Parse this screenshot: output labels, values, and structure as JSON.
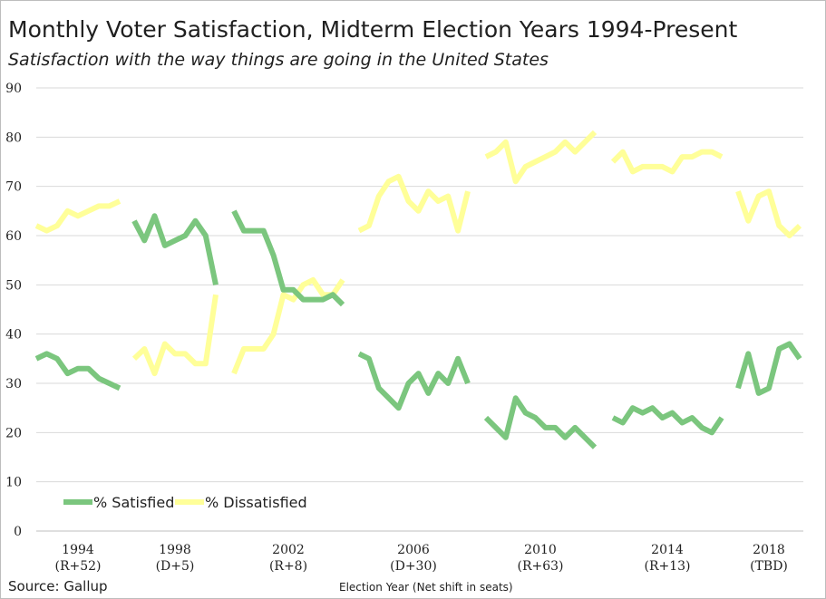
{
  "title": "Monthly Voter Satisfaction, Midterm Election Years 1994-Present",
  "subtitle": "Satisfaction with the way things are going in the United States",
  "source": "Source: Gallup",
  "colors": {
    "satisfied": "#7bc67e",
    "dissatisfied": "#ffff99",
    "grid": "#d9d9d9",
    "axis": "#bfbfbf"
  },
  "chart_data": {
    "type": "line",
    "title": "Monthly Voter Satisfaction, Midterm Election Years 1994-Present",
    "subtitle": "Satisfaction with the way things are going in the United States",
    "xlabel": "Election Year (Net shift in seats)",
    "ylabel": "",
    "ylim": [
      0,
      90
    ],
    "yticks": [
      0,
      10,
      20,
      30,
      40,
      50,
      60,
      70,
      80,
      90
    ],
    "grid": "horizontal",
    "legend": "bottom-left",
    "groups": [
      {
        "year": "1994",
        "shift": "(R+52)",
        "satisfied": [
          35,
          36,
          35,
          32,
          33,
          33,
          31,
          30,
          29
        ],
        "dissatisfied": [
          62,
          61,
          62,
          65,
          64,
          65,
          66,
          66,
          67
        ]
      },
      {
        "year": "1998",
        "shift": "(D+5)",
        "satisfied": [
          63,
          59,
          64,
          58,
          59,
          60,
          63,
          60,
          50
        ],
        "dissatisfied": [
          35,
          37,
          32,
          38,
          36,
          36,
          34,
          34,
          48
        ]
      },
      {
        "year": "2002",
        "shift": "(R+8)",
        "satisfied": [
          65,
          61,
          61,
          61,
          56,
          49,
          49,
          47,
          47,
          47,
          48,
          46
        ],
        "dissatisfied": [
          32,
          37,
          37,
          37,
          40,
          48,
          47,
          50,
          51,
          48,
          48,
          51
        ]
      },
      {
        "year": "2006",
        "shift": "(D+30)",
        "satisfied": [
          36,
          35,
          29,
          27,
          25,
          30,
          32,
          28,
          32,
          30,
          35,
          30
        ],
        "dissatisfied": [
          61,
          62,
          68,
          71,
          72,
          67,
          65,
          69,
          67,
          68,
          61,
          69
        ]
      },
      {
        "year": "2010",
        "shift": "(R+63)",
        "satisfied": [
          23,
          21,
          19,
          27,
          24,
          23,
          21,
          21,
          19,
          21,
          19,
          17
        ],
        "dissatisfied": [
          76,
          77,
          79,
          71,
          74,
          75,
          76,
          77,
          79,
          77,
          79,
          81
        ]
      },
      {
        "year": "2014",
        "shift": "(R+13)",
        "satisfied": [
          23,
          22,
          25,
          24,
          25,
          23,
          24,
          22,
          23,
          21,
          20,
          23
        ],
        "dissatisfied": [
          75,
          77,
          73,
          74,
          74,
          74,
          73,
          76,
          76,
          77,
          77,
          76
        ]
      },
      {
        "year": "2018",
        "shift": "(TBD)",
        "satisfied": [
          29,
          36,
          28,
          29,
          37,
          38,
          35
        ],
        "dissatisfied": [
          69,
          63,
          68,
          69,
          62,
          60,
          62
        ]
      }
    ],
    "series": [
      {
        "name": "% Satisfied",
        "key": "satisfied"
      },
      {
        "name": "% Dissatisfied",
        "key": "dissatisfied"
      }
    ]
  }
}
